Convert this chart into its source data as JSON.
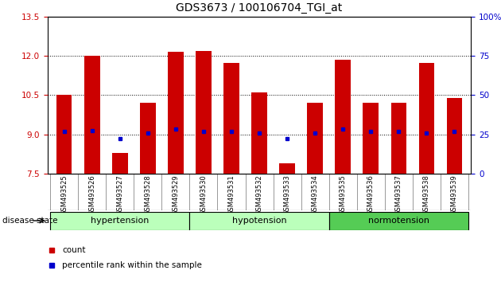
{
  "title": "GDS3673 / 100106704_TGI_at",
  "samples": [
    "GSM493525",
    "GSM493526",
    "GSM493527",
    "GSM493528",
    "GSM493529",
    "GSM493530",
    "GSM493531",
    "GSM493532",
    "GSM493533",
    "GSM493534",
    "GSM493535",
    "GSM493536",
    "GSM493537",
    "GSM493538",
    "GSM493539"
  ],
  "bar_heights": [
    10.5,
    12.0,
    8.3,
    10.2,
    12.15,
    12.2,
    11.75,
    10.6,
    7.9,
    10.2,
    11.85,
    10.2,
    10.2,
    11.75,
    10.4
  ],
  "blue_dots": [
    9.1,
    9.15,
    8.85,
    9.05,
    9.2,
    9.1,
    9.1,
    9.05,
    8.85,
    9.05,
    9.2,
    9.1,
    9.1,
    9.05,
    9.1
  ],
  "bar_color": "#cc0000",
  "dot_color": "#0000cc",
  "ymin": 7.5,
  "ymax": 13.5,
  "yticks_left": [
    7.5,
    9.0,
    10.5,
    12.0,
    13.5
  ],
  "yticks_right_vals": [
    0,
    25,
    50,
    75,
    100
  ],
  "yticks_right_labels": [
    "0",
    "25",
    "50",
    "75",
    "100%"
  ],
  "group_defs": [
    {
      "start": 0,
      "end": 4,
      "label": "hypertension",
      "color": "#bbffbb"
    },
    {
      "start": 5,
      "end": 9,
      "label": "hypotension",
      "color": "#bbffbb"
    },
    {
      "start": 10,
      "end": 14,
      "label": "normotension",
      "color": "#55cc55"
    }
  ],
  "disease_state_label": "disease state",
  "legend_items": [
    {
      "label": "count",
      "color": "#cc0000",
      "marker": "s"
    },
    {
      "label": "percentile rank within the sample",
      "color": "#0000cc",
      "marker": "s"
    }
  ],
  "background_color": "#ffffff",
  "bar_bottom": 7.5,
  "xtick_bg_color": "#cccccc",
  "xtick_divider_color": "#888888"
}
